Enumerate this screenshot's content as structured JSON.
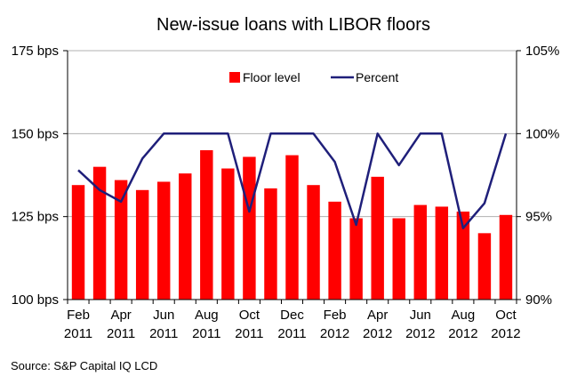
{
  "chart_data": {
    "type": "bar+line",
    "title": "New-issue loans with LIBOR floors",
    "source": "Source: S&P Capital IQ LCD",
    "categories": [
      "Feb 2011",
      "Mar 2011",
      "Apr 2011",
      "May 2011",
      "Jun 2011",
      "Jul 2011",
      "Aug 2011",
      "Sep 2011",
      "Oct 2011",
      "Nov 2011",
      "Dec 2011",
      "Jan 2012",
      "Feb 2012",
      "Mar 2012",
      "Apr 2012",
      "May 2012",
      "Jun 2012",
      "Jul 2012",
      "Aug 2012",
      "Sep 2012",
      "Oct 2012"
    ],
    "x_tick_labels": [
      {
        "month": "Feb",
        "year": "2011"
      },
      {
        "month": "Apr",
        "year": "2011"
      },
      {
        "month": "Jun",
        "year": "2011"
      },
      {
        "month": "Aug",
        "year": "2011"
      },
      {
        "month": "Oct",
        "year": "2011"
      },
      {
        "month": "Dec",
        "year": "2011"
      },
      {
        "month": "Feb",
        "year": "2012"
      },
      {
        "month": "Apr",
        "year": "2012"
      },
      {
        "month": "Jun",
        "year": "2012"
      },
      {
        "month": "Aug",
        "year": "2012"
      },
      {
        "month": "Oct",
        "year": "2012"
      }
    ],
    "series": [
      {
        "name": "Floor level",
        "type": "bar",
        "axis": "left",
        "color": "#ff0000",
        "values": [
          134.5,
          140,
          136,
          133,
          135.5,
          138,
          145,
          139.5,
          143,
          133.5,
          143.5,
          134.5,
          129.5,
          124.5,
          137,
          124.5,
          128.5,
          128,
          126.5,
          120,
          125.5
        ]
      },
      {
        "name": "Percent",
        "type": "line",
        "axis": "right",
        "color": "#1f1f7a",
        "values": [
          97.8,
          96.6,
          95.9,
          98.5,
          100,
          100,
          100,
          100,
          95.3,
          100,
          100,
          100,
          98.3,
          94.5,
          100,
          98.1,
          100,
          100,
          94.3,
          95.8,
          100
        ]
      }
    ],
    "y_left": {
      "min": 100,
      "max": 175,
      "ticks": [
        100,
        125,
        150,
        175
      ],
      "tick_labels": [
        "100 bps",
        "125 bps",
        "150 bps",
        "175 bps"
      ]
    },
    "y_right": {
      "min": 90,
      "max": 105,
      "ticks": [
        90,
        95,
        100,
        105
      ],
      "tick_labels": [
        "90%",
        "95%",
        "100%",
        "105%"
      ]
    },
    "grid": {
      "horizontal": true,
      "color": "#b0b0b0"
    },
    "legend": {
      "position": "top-center-inside"
    }
  }
}
